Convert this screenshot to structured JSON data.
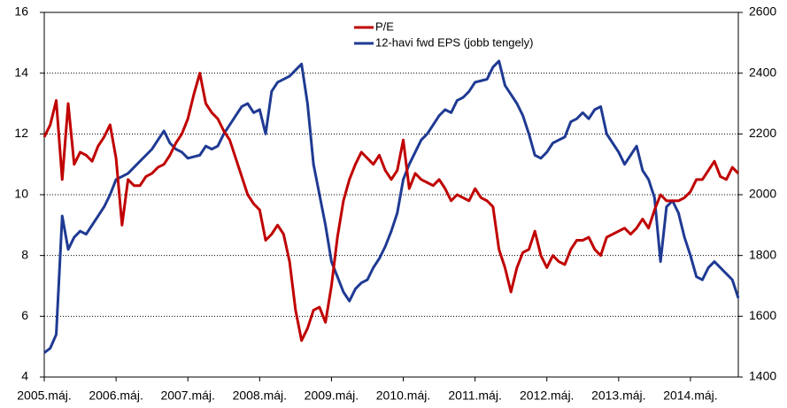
{
  "chart_data": {
    "type": "line",
    "categories": [
      "2005.máj.",
      null,
      null,
      null,
      null,
      null,
      null,
      null,
      null,
      null,
      null,
      null,
      "2006.máj.",
      null,
      null,
      null,
      null,
      null,
      null,
      null,
      null,
      null,
      null,
      null,
      "2007.máj.",
      null,
      null,
      null,
      null,
      null,
      null,
      null,
      null,
      null,
      null,
      null,
      "2008.máj.",
      null,
      null,
      null,
      null,
      null,
      null,
      null,
      null,
      null,
      null,
      null,
      "2009.máj.",
      null,
      null,
      null,
      null,
      null,
      null,
      null,
      null,
      null,
      null,
      null,
      "2010.máj.",
      null,
      null,
      null,
      null,
      null,
      null,
      null,
      null,
      null,
      null,
      null,
      "2011.máj.",
      null,
      null,
      null,
      null,
      null,
      null,
      null,
      null,
      null,
      null,
      null,
      "2012.máj.",
      null,
      null,
      null,
      null,
      null,
      null,
      null,
      null,
      null,
      null,
      null,
      "2013.máj.",
      null,
      null,
      null,
      null,
      null,
      null,
      null,
      null,
      null,
      null,
      null,
      "2014.máj.",
      null,
      null,
      null,
      null,
      null,
      null,
      null,
      null
    ],
    "series": [
      {
        "name": "P/E",
        "color": "#c00000",
        "values": [
          11.9,
          12.3,
          13.1,
          10.5,
          13.0,
          11.0,
          11.4,
          11.3,
          11.1,
          11.6,
          11.9,
          12.3,
          11.2,
          9.0,
          10.5,
          10.3,
          10.3,
          10.6,
          10.7,
          10.9,
          11.0,
          11.3,
          11.7,
          12.0,
          12.5,
          13.3,
          14.0,
          13.0,
          12.7,
          12.5,
          12.1,
          11.8,
          11.2,
          10.6,
          10.0,
          9.7,
          9.5,
          8.5,
          8.7,
          9.0,
          8.7,
          7.8,
          6.2,
          5.2,
          5.6,
          6.2,
          6.3,
          5.8,
          7.0,
          8.6,
          9.8,
          10.5,
          11.0,
          11.4,
          11.2,
          11.0,
          11.3,
          10.8,
          10.5,
          10.8,
          11.8,
          10.2,
          10.7,
          10.5,
          10.4,
          10.3,
          10.5,
          10.2,
          9.8,
          10.0,
          9.9,
          9.8,
          10.2,
          9.9,
          9.8,
          9.6,
          8.2,
          7.6,
          6.8,
          7.6,
          8.1,
          8.2,
          8.8,
          8.0,
          7.6,
          8.0,
          7.8,
          7.7,
          8.2,
          8.5,
          8.5,
          8.6,
          8.2,
          8.0,
          8.6,
          8.7,
          8.8,
          8.9,
          8.7,
          8.9,
          9.2,
          8.9,
          9.5,
          10.0,
          9.8,
          9.8,
          9.8,
          9.9,
          10.1,
          10.5,
          10.5,
          10.8,
          11.1,
          10.6,
          10.5,
          10.9,
          10.7
        ]
      },
      {
        "name": "12-havi fwd EPS (jobb tengely)",
        "color": "#1f3a93",
        "axis": "y2",
        "values": [
          1480,
          1495,
          1540,
          1930,
          1820,
          1860,
          1880,
          1870,
          1900,
          1930,
          1960,
          2000,
          2050,
          2060,
          2070,
          2090,
          2110,
          2130,
          2150,
          2180,
          2210,
          2170,
          2150,
          2140,
          2120,
          2125,
          2130,
          2160,
          2150,
          2160,
          2200,
          2230,
          2260,
          2290,
          2300,
          2270,
          2280,
          2200,
          2340,
          2370,
          2380,
          2390,
          2410,
          2430,
          2300,
          2100,
          2000,
          1900,
          1780,
          1730,
          1680,
          1650,
          1690,
          1710,
          1720,
          1760,
          1790,
          1830,
          1880,
          1940,
          2050,
          2100,
          2140,
          2180,
          2200,
          2230,
          2260,
          2280,
          2270,
          2310,
          2320,
          2340,
          2370,
          2375,
          2380,
          2420,
          2440,
          2360,
          2330,
          2300,
          2260,
          2200,
          2130,
          2120,
          2140,
          2170,
          2180,
          2190,
          2240,
          2250,
          2270,
          2250,
          2280,
          2290,
          2200,
          2170,
          2140,
          2100,
          2130,
          2160,
          2080,
          2050,
          1990,
          1780,
          1960,
          1980,
          1940,
          1860,
          1800,
          1730,
          1720,
          1760,
          1780,
          1760,
          1740,
          1720,
          1660
        ]
      }
    ],
    "ylim": [
      4,
      16
    ],
    "yticks": [
      4,
      6,
      8,
      10,
      12,
      14,
      16
    ],
    "y2lim": [
      1400,
      2600
    ],
    "y2ticks": [
      1400,
      1600,
      1800,
      2000,
      2200,
      2400,
      2600
    ],
    "grid": true,
    "legend": "top"
  }
}
